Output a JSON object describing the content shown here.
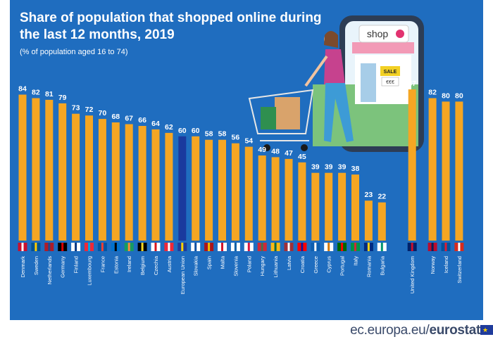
{
  "title": "Share of population that shopped online during the last 12 months, 2019",
  "subtitle": "(% of population aged 16 to 74)",
  "footer": {
    "site": "ec.europa.eu/",
    "brand": "eurostat"
  },
  "illustration": {
    "shop_sign": "shop",
    "sale_label": "SALE",
    "price_label": "€€€"
  },
  "colors": {
    "background": "#1f6dbf",
    "bar": "#f5a623",
    "eu_bar": "#1a3a9e",
    "label": "#ffffff"
  },
  "chart_data": {
    "type": "bar",
    "categories": [
      "Denmark",
      "Sweden",
      "Netherlands",
      "Germany",
      "Finland",
      "Luxembourg",
      "France",
      "Estonia",
      "Ireland",
      "Belgium",
      "Czechia",
      "Austria",
      "European Union",
      "Slovakia",
      "Spain",
      "Malta",
      "Slovenia",
      "Poland",
      "Hungary",
      "Lithuania",
      "Latvia",
      "Croatia",
      "Greece",
      "Cyprus",
      "Portugal",
      "Italy",
      "Romania",
      "Bulgaria",
      "United Kingdom",
      "Norway",
      "Iceland",
      "Switzerland"
    ],
    "values": [
      84,
      82,
      81,
      79,
      73,
      72,
      70,
      68,
      67,
      66,
      64,
      62,
      60,
      60,
      58,
      58,
      56,
      54,
      49,
      48,
      47,
      45,
      39,
      39,
      39,
      38,
      23,
      22,
      87,
      82,
      80,
      80
    ],
    "highlight": "European Union",
    "groups_gap_before": [
      "United Kingdom",
      "Norway"
    ],
    "flag_icons": [
      "denmark-flag",
      "sweden-flag",
      "netherlands-flag",
      "germany-flag",
      "finland-flag",
      "luxembourg-flag",
      "france-flag",
      "estonia-flag",
      "ireland-flag",
      "belgium-flag",
      "czechia-flag",
      "austria-flag",
      "eu-flag",
      "slovakia-flag",
      "spain-flag",
      "malta-flag",
      "slovenia-flag",
      "poland-flag",
      "hungary-flag",
      "lithuania-flag",
      "latvia-flag",
      "croatia-flag",
      "greece-flag",
      "cyprus-flag",
      "portugal-flag",
      "italy-flag",
      "romania-flag",
      "bulgaria-flag",
      "united-kingdom-flag",
      "norway-flag",
      "iceland-flag",
      "switzerland-flag"
    ],
    "ylim": [
      0,
      100
    ],
    "grid": false,
    "legend": "none",
    "xlabel": "",
    "ylabel": ""
  }
}
